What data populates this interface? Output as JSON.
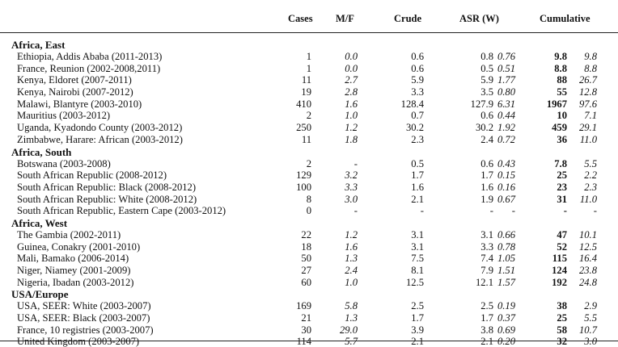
{
  "header": {
    "cases": "Cases",
    "mf": "M/F",
    "crude": "Crude",
    "asr": "ASR (W)",
    "cumulative": "Cumulative"
  },
  "sections": [
    {
      "title": "Africa, East",
      "rows": [
        {
          "label": "Ethiopia, Addis Ababa (2011-2013)",
          "cases": "1",
          "mf": "0.0",
          "crude": "0.6",
          "asr": "0.8",
          "asr_w": "0.76",
          "cum": "9.8",
          "cum_i": "9.8"
        },
        {
          "label": "France, Reunion (2002-2008,2011)",
          "cases": "1",
          "mf": "0.0",
          "crude": "0.6",
          "asr": "0.5",
          "asr_w": "0.51",
          "cum": "8.8",
          "cum_i": "8.8"
        },
        {
          "label": "Kenya, Eldoret (2007-2011)",
          "cases": "11",
          "mf": "2.7",
          "crude": "5.9",
          "asr": "5.9",
          "asr_w": "1.77",
          "cum": "88",
          "cum_i": "26.7"
        },
        {
          "label": "Kenya, Nairobi (2007-2012)",
          "cases": "19",
          "mf": "2.8",
          "crude": "3.3",
          "asr": "3.5",
          "asr_w": "0.80",
          "cum": "55",
          "cum_i": "12.8"
        },
        {
          "label": "Malawi, Blantyre (2003-2010)",
          "cases": "410",
          "mf": "1.6",
          "crude": "128.4",
          "asr": "127.9",
          "asr_w": "6.31",
          "cum": "1967",
          "cum_i": "97.6"
        },
        {
          "label": "Mauritius (2003-2012)",
          "cases": "2",
          "mf": "1.0",
          "crude": "0.7",
          "asr": "0.6",
          "asr_w": "0.44",
          "cum": "10",
          "cum_i": "7.1"
        },
        {
          "label": "Uganda, Kyadondo County (2003-2012)",
          "cases": "250",
          "mf": "1.2",
          "crude": "30.2",
          "asr": "30.2",
          "asr_w": "1.92",
          "cum": "459",
          "cum_i": "29.1"
        },
        {
          "label": "Zimbabwe, Harare: African (2003-2012)",
          "cases": "11",
          "mf": "1.8",
          "crude": "2.3",
          "asr": "2.4",
          "asr_w": "0.72",
          "cum": "36",
          "cum_i": "11.0"
        }
      ]
    },
    {
      "title": "Africa, South",
      "rows": [
        {
          "label": "Botswana (2003-2008)",
          "cases": "2",
          "mf": "-",
          "crude": "0.5",
          "asr": "0.6",
          "asr_w": "0.43",
          "cum": "7.8",
          "cum_i": "5.5"
        },
        {
          "label": "South African Republic (2008-2012)",
          "cases": "129",
          "mf": "3.2",
          "crude": "1.7",
          "asr": "1.7",
          "asr_w": "0.15",
          "cum": "25",
          "cum_i": "2.2"
        },
        {
          "label": "South African Republic: Black (2008-2012)",
          "cases": "100",
          "mf": "3.3",
          "crude": "1.6",
          "asr": "1.6",
          "asr_w": "0.16",
          "cum": "23",
          "cum_i": "2.3"
        },
        {
          "label": "South African Republic: White (2008-2012)",
          "cases": "8",
          "mf": "3.0",
          "crude": "2.1",
          "asr": "1.9",
          "asr_w": "0.67",
          "cum": "31",
          "cum_i": "11.0"
        },
        {
          "label": "South African Republic, Eastern Cape (2003-2012)",
          "cases": "0",
          "mf": "-",
          "crude": "-",
          "asr": "-",
          "asr_w": "-",
          "cum": "-",
          "cum_i": "-"
        }
      ]
    },
    {
      "title": "Africa, West",
      "rows": [
        {
          "label": "The Gambia (2002-2011)",
          "cases": "22",
          "mf": "1.2",
          "crude": "3.1",
          "asr": "3.1",
          "asr_w": "0.66",
          "cum": "47",
          "cum_i": "10.1"
        },
        {
          "label": "Guinea, Conakry (2001-2010)",
          "cases": "18",
          "mf": "1.6",
          "crude": "3.1",
          "asr": "3.3",
          "asr_w": "0.78",
          "cum": "52",
          "cum_i": "12.5"
        },
        {
          "label": "Mali, Bamako (2006-2014)",
          "cases": "50",
          "mf": "1.3",
          "crude": "7.5",
          "asr": "7.4",
          "asr_w": "1.05",
          "cum": "115",
          "cum_i": "16.4"
        },
        {
          "label": "Niger, Niamey (2001-2009)",
          "cases": "27",
          "mf": "2.4",
          "crude": "8.1",
          "asr": "7.9",
          "asr_w": "1.51",
          "cum": "124",
          "cum_i": "23.8"
        },
        {
          "label": "Nigeria, Ibadan (2003-2012)",
          "cases": "60",
          "mf": "1.0",
          "crude": "12.5",
          "asr": "12.1",
          "asr_w": "1.57",
          "cum": "192",
          "cum_i": "24.8"
        }
      ]
    },
    {
      "title": "USA/Europe",
      "rows": [
        {
          "label": "USA, SEER: White (2003-2007)",
          "cases": "169",
          "mf": "5.8",
          "crude": "2.5",
          "asr": "2.5",
          "asr_w": "0.19",
          "cum": "38",
          "cum_i": "2.9"
        },
        {
          "label": "USA, SEER: Black (2003-2007)",
          "cases": "21",
          "mf": "1.3",
          "crude": "1.7",
          "asr": "1.7",
          "asr_w": "0.37",
          "cum": "25",
          "cum_i": "5.5"
        },
        {
          "label": "France, 10 registries (2003-2007)",
          "cases": "30",
          "mf": "29.0",
          "crude": "3.9",
          "asr": "3.8",
          "asr_w": "0.69",
          "cum": "58",
          "cum_i": "10.7"
        },
        {
          "label": "United Kingdom (2003-2007)",
          "cases": "114",
          "mf": "5.7",
          "crude": "2.1",
          "asr": "2.1",
          "asr_w": "0.20",
          "cum": "32",
          "cum_i": "3.0"
        }
      ]
    }
  ]
}
